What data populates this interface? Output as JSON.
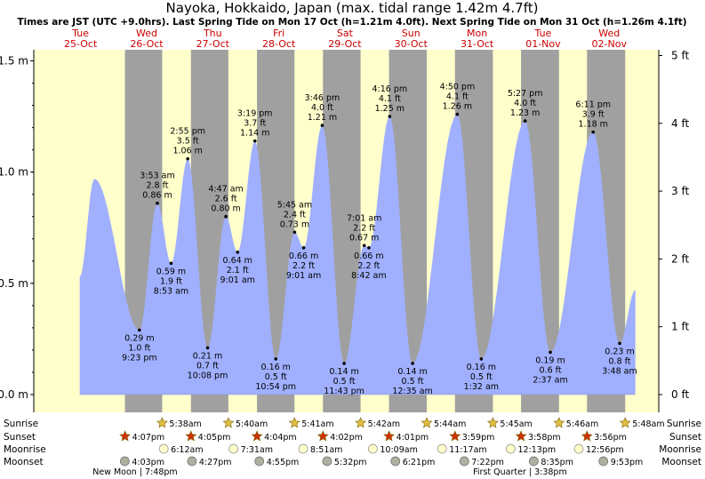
{
  "title": "Nayoka, Hokkaido, Japan (max. tidal range 1.42m 4.7ft)",
  "subtitle": "Times are JST (UTC +9.0hrs). Last Spring Tide on Mon 17 Oct (h=1.21m 4.0ft). Next Spring Tide on Mon 31 Oct (h=1.26m 4.1ft)",
  "colors": {
    "day": "#ffffcc",
    "night": "#a0a0a0",
    "tide": "#a0b0ff",
    "day_label": "#cc0000",
    "sun": "#e0c040",
    "sunset": "#cc3300",
    "moon": "#ffffcc",
    "moonset": "#b0b0a0"
  },
  "chart_data": {
    "type": "area",
    "x_unit": "hours from Tue 25-Oct 00:00 JST",
    "y_left": {
      "unit": "m",
      "range": [
        -0.08,
        1.55
      ],
      "ticks": [
        0.0,
        0.5,
        1.0,
        1.5
      ],
      "tick_labels": [
        "0.0 m",
        "0.5 m",
        "1.0 m",
        "1.5 m"
      ]
    },
    "y_right": {
      "unit": "ft",
      "ticks": [
        0,
        1,
        2,
        3,
        4,
        5
      ],
      "tick_labels": [
        "0 ft",
        "1 ft",
        "2 ft",
        "3 ft",
        "4 ft",
        "5 ft"
      ]
    },
    "x_range": [
      -17,
      210
    ],
    "days": [
      {
        "dow": "Tue",
        "date": "25-Oct",
        "t": 0
      },
      {
        "dow": "Wed",
        "date": "26-Oct",
        "t": 24
      },
      {
        "dow": "Thu",
        "date": "27-Oct",
        "t": 48
      },
      {
        "dow": "Fri",
        "date": "28-Oct",
        "t": 72
      },
      {
        "dow": "Sat",
        "date": "29-Oct",
        "t": 96
      },
      {
        "dow": "Sun",
        "date": "30-Oct",
        "t": 120
      },
      {
        "dow": "Mon",
        "date": "31-Oct",
        "t": 144
      },
      {
        "dow": "Tue",
        "date": "01-Nov",
        "t": 168
      },
      {
        "dow": "Wed",
        "date": "02-Nov",
        "t": 192
      }
    ],
    "extra_points": [
      {
        "t": -0.3,
        "h": 0.53
      },
      {
        "t": 5.0,
        "h": 0.97
      }
    ],
    "tides": [
      {
        "t": 21.38,
        "h": 0.29,
        "time": "9:23 pm",
        "ft": "1.0 ft",
        "m": "0.29 m",
        "type": "low"
      },
      {
        "t": 27.88,
        "h": 0.86,
        "time": "3:53 am",
        "ft": "2.8 ft",
        "m": "0.86 m",
        "type": "high"
      },
      {
        "t": 32.88,
        "h": 0.59,
        "time": "8:53 am",
        "ft": "1.9 ft",
        "m": "0.59 m",
        "type": "low"
      },
      {
        "t": 38.92,
        "h": 1.06,
        "time": "2:55 pm",
        "ft": "3.5 ft",
        "m": "1.06 m",
        "type": "high"
      },
      {
        "t": 46.13,
        "h": 0.21,
        "time": "10:08 pm",
        "ft": "0.7 ft",
        "m": "0.21 m",
        "type": "low"
      },
      {
        "t": 52.78,
        "h": 0.8,
        "time": "4:47 am",
        "ft": "2.6 ft",
        "m": "0.80 m",
        "type": "high"
      },
      {
        "t": 57.02,
        "h": 0.64,
        "time": "9:01 am",
        "ft": "2.1 ft",
        "m": "0.64 m",
        "type": "low"
      },
      {
        "t": 63.32,
        "h": 1.14,
        "time": "3:19 pm",
        "ft": "3.7 ft",
        "m": "1.14 m",
        "type": "high"
      },
      {
        "t": 70.9,
        "h": 0.16,
        "time": "10:54 pm",
        "ft": "0.5 ft",
        "m": "0.16 m",
        "type": "low"
      },
      {
        "t": 77.75,
        "h": 0.73,
        "time": "5:45 am",
        "ft": "2.4 ft",
        "m": "0.73 m",
        "type": "high"
      },
      {
        "t": 81.02,
        "h": 0.66,
        "time": "9:01 am",
        "ft": "2.2 ft",
        "m": "0.66 m",
        "type": "low"
      },
      {
        "t": 87.77,
        "h": 1.21,
        "time": "3:46 pm",
        "ft": "4.0 ft",
        "m": "1.21 m",
        "type": "high"
      },
      {
        "t": 95.72,
        "h": 0.14,
        "time": "11:43 pm",
        "ft": "0.5 ft",
        "m": "0.14 m",
        "type": "low"
      },
      {
        "t": 103.02,
        "h": 0.67,
        "time": "7:01 am",
        "ft": "2.2 ft",
        "m": "0.67 m",
        "type": "high"
      },
      {
        "t": 104.7,
        "h": 0.66,
        "time": "8:42 am",
        "ft": "2.2 ft",
        "m": "0.66 m",
        "type": "low"
      },
      {
        "t": 112.27,
        "h": 1.25,
        "time": "4:16 pm",
        "ft": "4.1 ft",
        "m": "1.25 m",
        "type": "high"
      },
      {
        "t": 120.58,
        "h": 0.14,
        "time": "12:35 am",
        "ft": "0.5 ft",
        "m": "0.14 m",
        "type": "low"
      },
      {
        "t": 136.83,
        "h": 1.26,
        "time": "4:50 pm",
        "ft": "4.1 ft",
        "m": "1.26 m",
        "type": "high"
      },
      {
        "t": 145.53,
        "h": 0.16,
        "time": "1:32 am",
        "ft": "0.5 ft",
        "m": "0.16 m",
        "type": "low"
      },
      {
        "t": 161.45,
        "h": 1.23,
        "time": "5:27 pm",
        "ft": "4.0 ft",
        "m": "1.23 m",
        "type": "high"
      },
      {
        "t": 170.62,
        "h": 0.19,
        "time": "2:37 am",
        "ft": "0.6 ft",
        "m": "0.19 m",
        "type": "low"
      },
      {
        "t": 186.18,
        "h": 1.18,
        "time": "6:11 pm",
        "ft": "3.9 ft",
        "m": "1.18 m",
        "type": "high"
      },
      {
        "t": 195.8,
        "h": 0.23,
        "time": "3:48 am",
        "ft": "0.8 ft",
        "m": "0.23 m",
        "type": "low"
      }
    ],
    "sunrise": [
      {
        "t": 29.63,
        "time": "5:38am"
      },
      {
        "t": 53.67,
        "time": "5:40am"
      },
      {
        "t": 77.68,
        "time": "5:41am"
      },
      {
        "t": 101.7,
        "time": "5:42am"
      },
      {
        "t": 125.73,
        "time": "5:44am"
      },
      {
        "t": 149.75,
        "time": "5:45am"
      },
      {
        "t": 173.77,
        "time": "5:46am"
      },
      {
        "t": 197.8,
        "time": "5:48am"
      }
    ],
    "sunset": [
      {
        "t": 16.12,
        "time": "4:07pm"
      },
      {
        "t": 40.08,
        "time": "4:05pm"
      },
      {
        "t": 64.07,
        "time": "4:04pm"
      },
      {
        "t": 88.03,
        "time": "4:02pm"
      },
      {
        "t": 112.02,
        "time": "4:01pm"
      },
      {
        "t": 135.98,
        "time": "3:59pm"
      },
      {
        "t": 159.97,
        "time": "3:58pm"
      },
      {
        "t": 183.93,
        "time": "3:56pm"
      }
    ],
    "moonrise": [
      {
        "t": 30.2,
        "time": "6:12am"
      },
      {
        "t": 55.52,
        "time": "7:31am"
      },
      {
        "t": 80.85,
        "time": "8:51am"
      },
      {
        "t": 106.15,
        "time": "10:09am"
      },
      {
        "t": 131.28,
        "time": "11:17am"
      },
      {
        "t": 156.22,
        "time": "12:13pm"
      },
      {
        "t": 180.93,
        "time": "12:56pm"
      }
    ],
    "moonset": [
      {
        "t": 16.05,
        "time": "4:03pm"
      },
      {
        "t": 40.45,
        "time": "4:27pm"
      },
      {
        "t": 64.92,
        "time": "4:55pm"
      },
      {
        "t": 89.53,
        "time": "5:32pm"
      },
      {
        "t": 114.35,
        "time": "6:21pm"
      },
      {
        "t": 139.37,
        "time": "7:22pm"
      },
      {
        "t": 164.58,
        "time": "8:35pm"
      },
      {
        "t": 189.88,
        "time": "9:53pm"
      }
    ],
    "row_labels": [
      "Sunrise",
      "Sunset",
      "Moonrise",
      "Moonset"
    ],
    "moon_phases": [
      {
        "text": "New Moon | 7:48pm",
        "t": 19.8
      },
      {
        "text": "First Quarter | 3:38pm",
        "t": 159.6
      }
    ]
  }
}
